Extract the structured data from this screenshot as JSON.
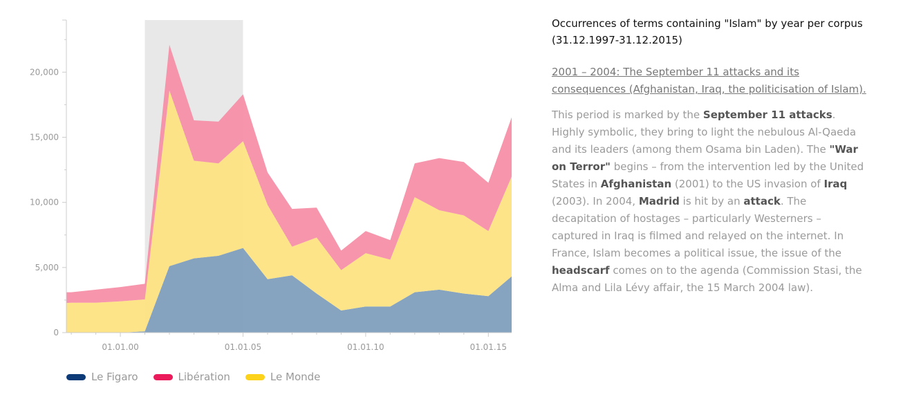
{
  "chart_data": {
    "type": "area",
    "stacked": true,
    "x": [
      1997,
      1998,
      1999,
      2000,
      2001,
      2002,
      2003,
      2004,
      2005,
      2006,
      2007,
      2008,
      2009,
      2010,
      2011,
      2012,
      2013,
      2014,
      2015,
      2016
    ],
    "x_tick_values": [
      2000,
      2005,
      2010,
      2015
    ],
    "x_tick_labels": [
      "01.01.00",
      "01.01.05",
      "01.01.10",
      "01.01.15"
    ],
    "y_ticks": [
      0,
      5000,
      10000,
      15000,
      20000
    ],
    "y_tick_labels": [
      "0",
      "5,000",
      "10,000",
      "15,000",
      "20,000"
    ],
    "ylim": [
      0,
      24000
    ],
    "highlight_range": [
      2001,
      2005
    ],
    "series": [
      {
        "name": "Le Figaro",
        "color": "#7f9ebd",
        "legend_color": "#0d3b78",
        "values": [
          0,
          0,
          0,
          0,
          100,
          5100,
          5700,
          5900,
          6500,
          4100,
          4400,
          3000,
          1700,
          2000,
          2000,
          3100,
          3300,
          3000,
          2800,
          4400
        ]
      },
      {
        "name": "Le Monde",
        "color": "#fde382",
        "legend_color": "#fcd21b",
        "values": [
          2200,
          2300,
          2300,
          2400,
          2450,
          13500,
          7500,
          7100,
          8200,
          5700,
          2200,
          4300,
          3100,
          4100,
          3600,
          7300,
          6100,
          6000,
          5000,
          7800
        ]
      },
      {
        "name": "Libération",
        "color": "#f68fa7",
        "legend_color": "#eb1a5a",
        "values": [
          900,
          800,
          1000,
          1100,
          1200,
          3500,
          3100,
          3200,
          3600,
          2500,
          2900,
          2300,
          1500,
          1700,
          1500,
          2600,
          4000,
          4100,
          3700,
          4600
        ]
      }
    ]
  },
  "legend": [
    {
      "label": "Le Figaro",
      "color": "#0d3b78"
    },
    {
      "label": "Libération",
      "color": "#eb1a5a"
    },
    {
      "label": "Le Monde",
      "color": "#fcd21b"
    }
  ],
  "panel": {
    "title": "Occurrences of terms containing \"Islam\" by year per corpus (31.12.1997-31.12.2015)",
    "subtitle": "2001 – 2004: The September 11 attacks and its consequences (Afghanistan, Iraq, the politicisation of Islam).",
    "body": {
      "t1": "This period is marked by the ",
      "b1": "September 11 attacks",
      "t2": ". Highly symbolic, they bring to light the nebulous Al-Qaeda and its leaders (among them Osama bin Laden). The ",
      "b2": "\"War on Terror\"",
      "t3": " begins – from the intervention led by the United States in ",
      "b3": "Afghanistan",
      "t4": " (2001) to the US invasion of ",
      "b4": "Iraq",
      "t5": " (2003). In 2004, ",
      "b5": "Madrid",
      "t6": " is hit by an ",
      "b6": "attack",
      "t7": ". The decapitation of hostages – particularly Westerners – captured in Iraq is filmed and relayed on the internet. In France, Islam becomes a political issue, the issue of the ",
      "b7": "headscarf",
      "t8": " comes on to the agenda (Commission Stasi, the Alma and Lila Lévy affair, the 15 March 2004 law)."
    }
  }
}
